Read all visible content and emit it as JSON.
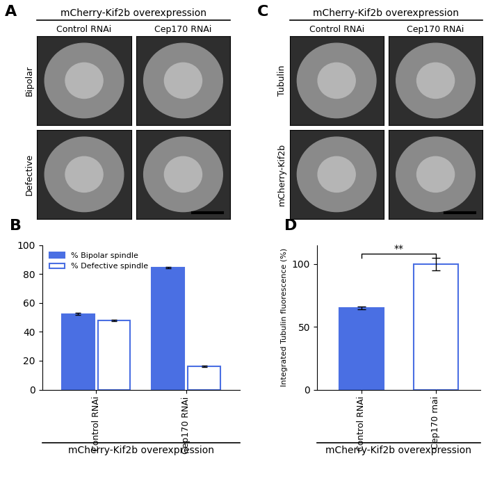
{
  "image_panels": [
    {
      "label": "A",
      "header": "mCherry-Kif2b overexpression",
      "columns": [
        "Control RNAi",
        "Cep170 RNAi"
      ],
      "rows": [
        "Bipolar",
        "Defective"
      ]
    },
    {
      "label": "C",
      "header": "mCherry-Kif2b overexpression",
      "columns": [
        "Control RNAi",
        "Cep170 RNAi"
      ],
      "rows": [
        "Tubulin",
        "mCherry-Kif2b"
      ]
    }
  ],
  "chart_data": [
    {
      "label": "B",
      "type": "bar",
      "categories": [
        "Control RNAi",
        "Cep170 RNAi"
      ],
      "series": [
        {
          "name": "% Bipolar spindle",
          "color": "#4a6fe3",
          "values": [
            52.5,
            84.5
          ],
          "errors": [
            0.5,
            0.5
          ]
        },
        {
          "name": "% Defective spindle",
          "color": "#ffffff",
          "values": [
            48,
            16
          ],
          "errors": [
            0.5,
            0.5
          ]
        }
      ],
      "ylim": [
        0,
        100
      ],
      "yticks": [
        0,
        20,
        40,
        60,
        80,
        100
      ],
      "legend": "upper left",
      "annotations": [
        "mCherry-Kif2b overexpression"
      ]
    },
    {
      "label": "D",
      "type": "bar",
      "categories": [
        "Control RNAi",
        "Cep170 rnai"
      ],
      "values": [
        65,
        100
      ],
      "errors": [
        1,
        5
      ],
      "colors": [
        "#4a6fe3",
        "#ffffff"
      ],
      "y_label": "Integrated Tubulin fluorescence (%)",
      "ylim": [
        0,
        115
      ],
      "yticks": [
        0,
        50,
        100
      ],
      "significance": "**",
      "annotations": [
        "mCherry-Kif2b overexpression"
      ]
    }
  ]
}
